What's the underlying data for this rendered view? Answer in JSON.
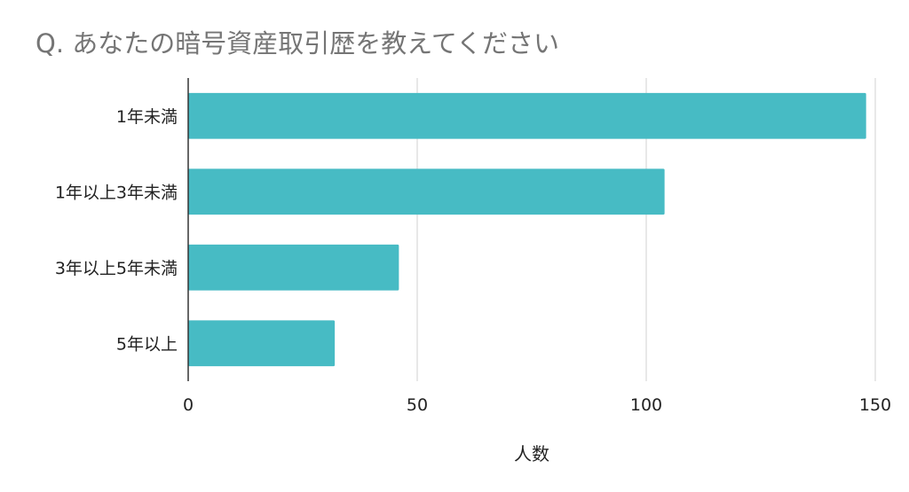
{
  "chart_data": {
    "type": "bar",
    "orientation": "horizontal",
    "title": "Q. あなたの暗号資産取引歴を教えてください",
    "categories": [
      "1年未満",
      "1年以上3年未満",
      "3年以上5年未満",
      "5年以上"
    ],
    "values": [
      148,
      104,
      46,
      32
    ],
    "xlabel": "人数",
    "ylabel": "",
    "xlim": [
      0,
      150
    ],
    "xticks": [
      0,
      50,
      100,
      150
    ],
    "grid": true,
    "legend": "none",
    "bar_color": "#47BBC4"
  }
}
